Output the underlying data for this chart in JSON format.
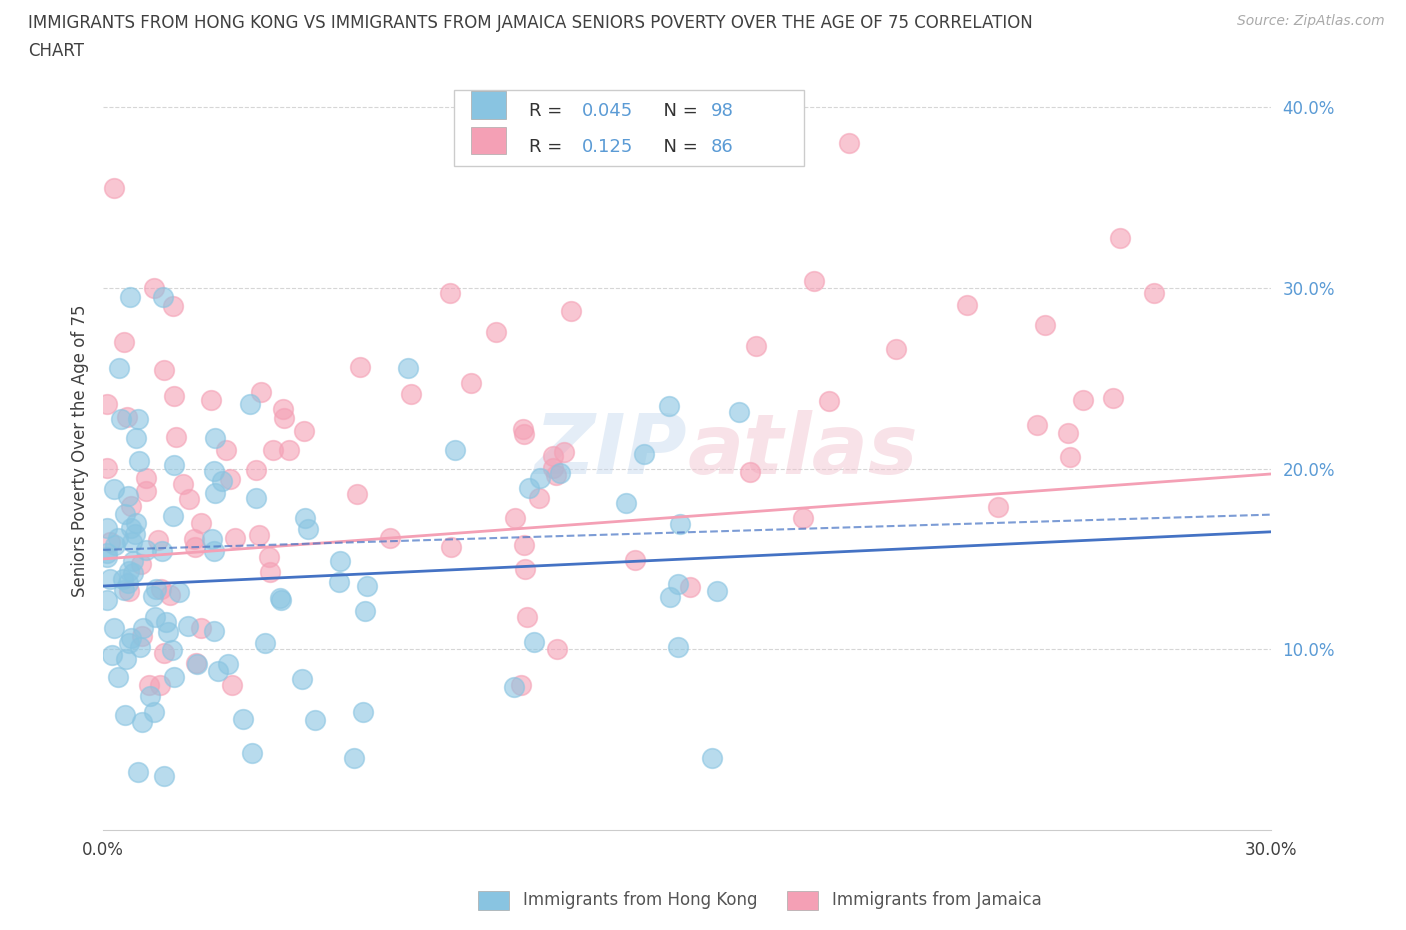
{
  "title_line1": "IMMIGRANTS FROM HONG KONG VS IMMIGRANTS FROM JAMAICA SENIORS POVERTY OVER THE AGE OF 75 CORRELATION",
  "title_line2": "CHART",
  "source": "Source: ZipAtlas.com",
  "ylabel": "Seniors Poverty Over the Age of 75",
  "xlabel_hk": "Immigrants from Hong Kong",
  "xlabel_jam": "Immigrants from Jamaica",
  "xlim": [
    0.0,
    0.3
  ],
  "ylim": [
    0.0,
    0.42
  ],
  "yticks": [
    0.1,
    0.2,
    0.3,
    0.4
  ],
  "xticks": [
    0.0,
    0.05,
    0.1,
    0.15,
    0.2,
    0.25,
    0.3
  ],
  "R_hk": 0.045,
  "N_hk": 98,
  "R_jam": 0.125,
  "N_jam": 86,
  "color_hk": "#89c4e1",
  "color_jam": "#f4a0b5",
  "trendline_color_hk": "#4472c4",
  "trendline_color_jam": "#f4a0b5",
  "watermark": "ZIPatlas",
  "background_color": "#ffffff",
  "grid_color": "#cccccc",
  "tick_color": "#5b9bd5",
  "label_color": "#404040"
}
